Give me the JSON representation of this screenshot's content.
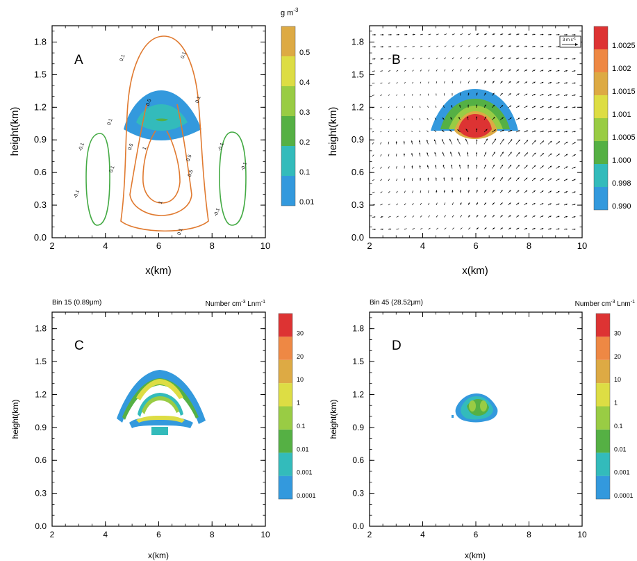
{
  "palettes": {
    "top": [
      "#3399dd",
      "#33bbbb",
      "#55b044",
      "#99cc44",
      "#dddd44",
      "#ddaa44"
    ],
    "bottom": [
      "#3399dd",
      "#33bbbb",
      "#55b044",
      "#99cc44",
      "#dddd44",
      "#ddaa44",
      "#ee8844",
      "#dd3333"
    ],
    "b_panel": [
      "#3399dd",
      "#33bbbb",
      "#55b044",
      "#99cc44",
      "#dddd44",
      "#ddaa44",
      "#ee8844",
      "#dd3333"
    ],
    "contour_pos": "#e07a30",
    "contour_neg": "#44aa44"
  },
  "chart_data": [
    {
      "id": "A",
      "type": "heatmap",
      "panel_letter": "A",
      "xlabel": "x(km)",
      "ylabel": "height(km)",
      "xlim": [
        2,
        10
      ],
      "ylim": [
        0,
        1.95
      ],
      "x_ticks": [
        "2",
        "4",
        "6",
        "8",
        "10"
      ],
      "y_ticks": [
        "0.0",
        "0.3",
        "0.6",
        "0.9",
        "1.2",
        "1.5",
        "1.8"
      ],
      "colorbar": {
        "unit_base": "g m",
        "unit_exp": "-3",
        "levels": [
          "0.01",
          "0.1",
          "0.2",
          "0.3",
          "0.4",
          "0.5"
        ]
      },
      "contour_labels": [
        "0.1",
        "0.1",
        "0.1",
        "0.1",
        "0.5",
        "0.5",
        "0.5",
        "1",
        "1",
        "0.1",
        "-0.1",
        "-0.1",
        "-0.1",
        "-0.1",
        "-0.1",
        "0.1",
        "0.5"
      ]
    },
    {
      "id": "B",
      "type": "heatmap",
      "panel_letter": "B",
      "xlabel": "x(km)",
      "ylabel": "height(km)",
      "xlim": [
        2,
        10
      ],
      "ylim": [
        0,
        1.95
      ],
      "x_ticks": [
        "2",
        "4",
        "6",
        "8",
        "10"
      ],
      "y_ticks": [
        "0.0",
        "0.3",
        "0.6",
        "0.9",
        "1.2",
        "1.5",
        "1.8"
      ],
      "vector_reference": "3 m s",
      "vector_reference_exp": "-1",
      "colorbar": {
        "levels": [
          "0.990",
          "0.998",
          "1.000",
          "1.0005",
          "1.001",
          "1.0015",
          "1.002",
          "1.0025"
        ]
      }
    },
    {
      "id": "C",
      "type": "heatmap",
      "panel_letter": "C",
      "left_title": "Bin 15 (0.89μm)",
      "right_title_base": "Number cm",
      "right_title_exp1": "-3",
      "right_title_mid": " Lnm",
      "right_title_exp2": "-1",
      "xlabel": "x(km)",
      "ylabel": "height(km)",
      "xlim": [
        2,
        10
      ],
      "ylim": [
        0,
        1.95
      ],
      "x_ticks": [
        "2",
        "4",
        "6",
        "8",
        "10"
      ],
      "y_ticks": [
        "0.0",
        "0.3",
        "0.6",
        "0.9",
        "1.2",
        "1.5",
        "1.8"
      ],
      "colorbar": {
        "levels": [
          "0.0001",
          "0.001",
          "0.01",
          "0.1",
          "1",
          "10",
          "20",
          "30"
        ]
      }
    },
    {
      "id": "D",
      "type": "heatmap",
      "panel_letter": "D",
      "left_title": "Bin 45 (28.52μm)",
      "right_title_base": "Number cm",
      "right_title_exp1": "-3",
      "right_title_mid": " Lnm",
      "right_title_exp2": "-1",
      "xlabel": "x(km)",
      "ylabel": "height(km)",
      "xlim": [
        2,
        10
      ],
      "ylim": [
        0,
        1.95
      ],
      "x_ticks": [
        "2",
        "4",
        "6",
        "8",
        "10"
      ],
      "y_ticks": [
        "0.0",
        "0.3",
        "0.6",
        "0.9",
        "1.2",
        "1.5",
        "1.8"
      ],
      "colorbar": {
        "levels": [
          "0.0001",
          "0.001",
          "0.01",
          "0.1",
          "1",
          "10",
          "20",
          "30"
        ]
      }
    }
  ]
}
